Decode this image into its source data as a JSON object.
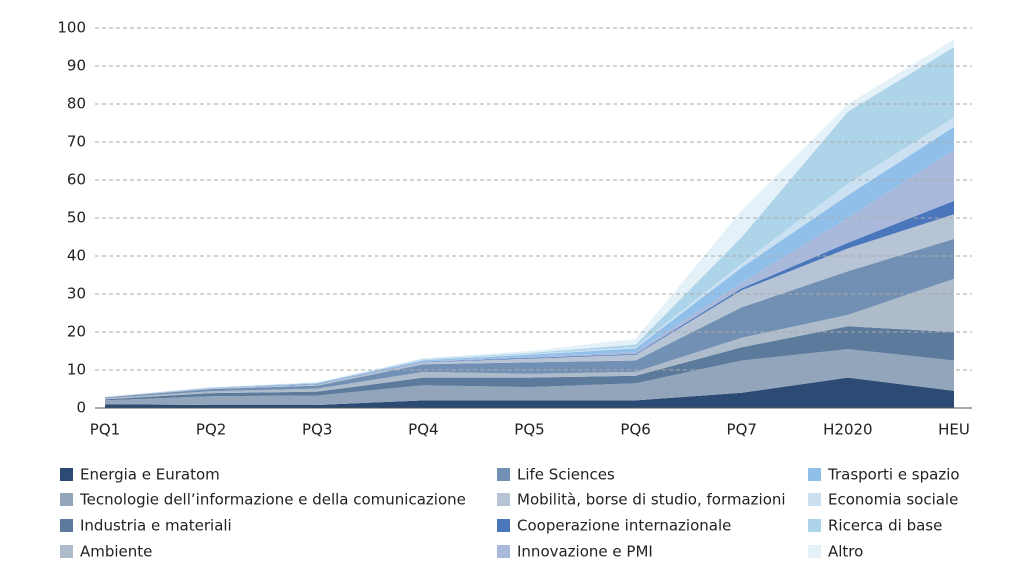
{
  "chart_data": {
    "type": "stacked_area",
    "categories": [
      "PQ1",
      "PQ2",
      "PQ3",
      "PQ4",
      "PQ5",
      "PQ6",
      "PQ7",
      "H2020",
      "HEU"
    ],
    "ylim": [
      0,
      100
    ],
    "yticks": [
      0,
      10,
      20,
      30,
      40,
      50,
      60,
      70,
      80,
      90,
      100
    ],
    "grid": true,
    "legend": "bottom",
    "series": [
      {
        "name": "Energia e Euratom",
        "color": "#2b4a74",
        "values": [
          1,
          0.8,
          0.8,
          2,
          2,
          2,
          4,
          8,
          4.5
        ]
      },
      {
        "name": "Tecnologie dell’informazione e della comunicazione",
        "color": "#93a5bb",
        "values": [
          1,
          2.3,
          2.5,
          4,
          3.5,
          4.5,
          8.5,
          7.5,
          8
        ]
      },
      {
        "name": "Industria e materiali",
        "color": "#5b7a9c",
        "values": [
          0.3,
          0.8,
          1,
          2,
          2.5,
          2,
          3.5,
          6,
          7.5
        ]
      },
      {
        "name": "Ambiente",
        "color": "#aebbcb",
        "values": [
          0.3,
          0.5,
          0.8,
          1.5,
          1,
          1,
          2.5,
          3,
          14
        ]
      },
      {
        "name": "Life Sciences",
        "color": "#7290b4",
        "values": [
          0.2,
          0.6,
          0.8,
          2,
          3,
          3,
          8,
          11.5,
          10.5
        ]
      },
      {
        "name": "Mobilità, borse di studio, formazioni",
        "color": "#b7c4d6",
        "values": [
          0.1,
          0.2,
          0.3,
          0.5,
          1,
          1.5,
          4.5,
          6,
          6.5
        ]
      },
      {
        "name": "Cooperazione internazionale",
        "color": "#4a76bc",
        "values": [
          0,
          0,
          0.1,
          0.1,
          0.2,
          0.2,
          0.5,
          1.5,
          3.5
        ]
      },
      {
        "name": "Innovazione e PMI",
        "color": "#a9b9dc",
        "values": [
          0,
          0.1,
          0.1,
          0.2,
          0.3,
          0.5,
          1.5,
          6.5,
          13.5
        ]
      },
      {
        "name": "Trasporti e spazio",
        "color": "#90c0ea",
        "values": [
          0,
          0.1,
          0.2,
          0.3,
          0.5,
          1,
          4,
          6,
          6
        ]
      },
      {
        "name": "Economia sociale",
        "color": "#cbe1f1",
        "values": [
          0,
          0,
          0,
          0.1,
          0.2,
          0.3,
          1,
          3,
          2.5
        ]
      },
      {
        "name": "Ricerca di base",
        "color": "#add4e8",
        "values": [
          0,
          0,
          0,
          0.2,
          0.3,
          0.7,
          7,
          19,
          18.5
        ]
      },
      {
        "name": "Altro",
        "color": "#e4f1f9",
        "values": [
          0.1,
          0.1,
          0.2,
          0.2,
          0.5,
          1.5,
          7,
          2,
          2
        ]
      }
    ]
  }
}
